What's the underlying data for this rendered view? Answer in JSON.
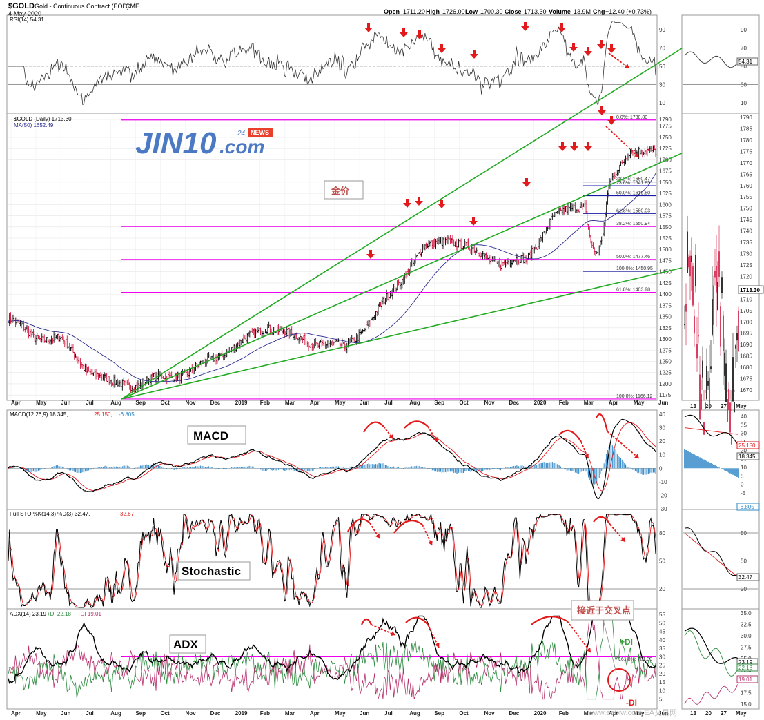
{
  "header": {
    "symbol": "$GOLD",
    "name": "Gold - Continuous Contract (EOD)",
    "exchange": "CME",
    "date": "4-May-2020",
    "open_label": "Open",
    "open": "1711.20",
    "high_label": "High",
    "high": "1726.00",
    "low_label": "Low",
    "low": "1700.30",
    "close_label": "Close",
    "close": "1713.30",
    "volume_label": "Volume",
    "volume": "13.9M",
    "chg_label": "Chg",
    "chg": "+12.40 (+0.73%)"
  },
  "panels": {
    "rsi": {
      "title": "RSI(14) 54.31",
      "value": "54.31",
      "ticks": [
        "90",
        "70",
        "50",
        "30",
        "10"
      ]
    },
    "price": {
      "title": "$GOLD (Daily) 1713.30",
      "ma_title": "MA(50) 1652.49",
      "value": "1713.30",
      "ticks": [
        "1790",
        "1775",
        "1750",
        "1725",
        "1700",
        "1675",
        "1650",
        "1625",
        "1600",
        "1575",
        "1550",
        "1525",
        "1500",
        "1475",
        "1450",
        "1425",
        "1400",
        "1375",
        "1350",
        "1325",
        "1300",
        "1275",
        "1250",
        "1225",
        "1200",
        "1175"
      ],
      "zoom_ticks": [
        "1790",
        "1785",
        "1780",
        "1775",
        "1770",
        "1765",
        "1760",
        "1755",
        "1750",
        "1745",
        "1740",
        "1735",
        "1730",
        "1725",
        "1720",
        "1715",
        "1710",
        "1705",
        "1700",
        "1695",
        "1690",
        "1685",
        "1680",
        "1675",
        "1670"
      ]
    },
    "macd": {
      "title": "MACD(12,26,9) 18.345,",
      "signal": "25.150,",
      "hist": "-6.805",
      "label_signal": "25.150",
      "label_macd": "18.345",
      "label_hist": "-6.805",
      "ticks": [
        "40",
        "30",
        "20",
        "10",
        "0",
        "-10",
        "-20",
        "-30"
      ],
      "zoom_ticks": [
        "40",
        "35",
        "30",
        "25",
        "20",
        "15",
        "10",
        "5",
        "0",
        "-5"
      ]
    },
    "sto": {
      "title": "Full STO %K(14,3) %D(3) 32.47,",
      "d": "32.67",
      "label_k": "32.47",
      "ticks": [
        "80",
        "50",
        "20"
      ]
    },
    "adx": {
      "title": "ADX(14) 23.19",
      "pdi": "+DI 22.18",
      "mdi": "-DI 19.01",
      "label_adx": "23.19",
      "label_pdi": "22.18",
      "label_mdi": "19.01",
      "ticks": [
        "55",
        "50",
        "45",
        "40",
        "35",
        "30",
        "25",
        "20",
        "15",
        "10",
        "5"
      ],
      "zoom_ticks": [
        "35.0",
        "32.5",
        "30.0",
        "27.5",
        "25.0",
        "22.5",
        "20.0",
        "17.5",
        "15.0"
      ]
    }
  },
  "annotations": {
    "macd_box": "MACD",
    "sto_box": "Stochastic",
    "adx_box": "ADX",
    "gold_cn": "金价",
    "cross_cn": "接近于交叉点",
    "plus_di": "+DI",
    "minus_di": "-DI",
    "fib_adx": "161.8%: 781.30"
  },
  "logo": {
    "main": "JIN10",
    "suffix": ".com",
    "num": "24",
    "news": "NEWS"
  },
  "watermark": "www.eatxw.com   EA交易网",
  "x_axis": {
    "labels": [
      "Apr",
      "May",
      "Jun",
      "Jul",
      "Aug",
      "Sep",
      "Oct",
      "Nov",
      "Dec",
      "2019",
      "Feb",
      "Mar",
      "Apr",
      "May",
      "Jun",
      "Jul",
      "Aug",
      "Sep",
      "Oct",
      "Nov",
      "Dec",
      "2020",
      "Feb",
      "Mar",
      "Apr",
      "May",
      "Jun"
    ],
    "zoom_labels": [
      "13",
      "20",
      "27",
      "May"
    ]
  },
  "fibonacci": [
    {
      "label": "0.0%: 1788.80",
      "value": 1788.8
    },
    {
      "label": "38.2%: 1650.47",
      "value": 1650.47
    },
    {
      "label": "23.6%: 1641.85",
      "value": 1641.85
    },
    {
      "label": "50.0%: 1619.80",
      "value": 1619.8
    },
    {
      "label": "61.8%: 1580.03",
      "value": 1580.03
    },
    {
      "label": "38.2%: 1550.94",
      "value": 1550.94
    },
    {
      "label": "50.0%: 1477.46",
      "value": 1477.46
    },
    {
      "label": "100.0%: 1450.95",
      "value": 1450.95
    },
    {
      "label": "61.8%: 1403.98",
      "value": 1403.98
    },
    {
      "label": "100.0%: 1166.12",
      "value": 1166.12
    }
  ],
  "colors": {
    "price_up": "#000000",
    "price_down": "#d0103a",
    "ma": "#2a2a8f",
    "trend": "#22aa22",
    "fib": "#ee00ee",
    "arrow": "#e31a1c",
    "macd_hist": "#2f87c7",
    "signal": "#e31a1c",
    "pdi": "#2d8a3e",
    "mdi": "#b5306b"
  },
  "chart_data": {
    "type": "line",
    "title": "$GOLD Gold - Continuous Contract (EOD)",
    "x": [
      "2018-04",
      "2018-05",
      "2018-06",
      "2018-07",
      "2018-08",
      "2018-09",
      "2018-10",
      "2018-11",
      "2018-12",
      "2019-01",
      "2019-02",
      "2019-03",
      "2019-04",
      "2019-05",
      "2019-06",
      "2019-07",
      "2019-08",
      "2019-09",
      "2019-10",
      "2019-11",
      "2019-12",
      "2020-01",
      "2020-02",
      "2020-03",
      "2020-04",
      "2020-05"
    ],
    "series": [
      {
        "name": "$GOLD (Daily)",
        "values": [
          1345,
          1305,
          1300,
          1235,
          1200,
          1200,
          1215,
          1225,
          1260,
          1290,
          1330,
          1305,
          1290,
          1280,
          1340,
          1420,
          1500,
          1525,
          1495,
          1470,
          1475,
          1570,
          1595,
          1620,
          1725,
          1713
        ]
      },
      {
        "name": "MA(50)",
        "values": [
          1330,
          1320,
          1300,
          1260,
          1225,
          1205,
          1205,
          1215,
          1235,
          1270,
          1300,
          1305,
          1300,
          1290,
          1310,
          1365,
          1440,
          1500,
          1505,
          1490,
          1475,
          1520,
          1570,
          1590,
          1635,
          1652
        ]
      }
    ],
    "ylim": [
      1166,
      1790
    ],
    "rsi_value": 54.31,
    "macd": 18.345,
    "macd_signal": 25.15,
    "macd_hist": -6.805,
    "sto_k": 32.47,
    "sto_d": 32.67,
    "adx": 23.19,
    "plus_di": 22.18,
    "minus_di": 19.01
  }
}
